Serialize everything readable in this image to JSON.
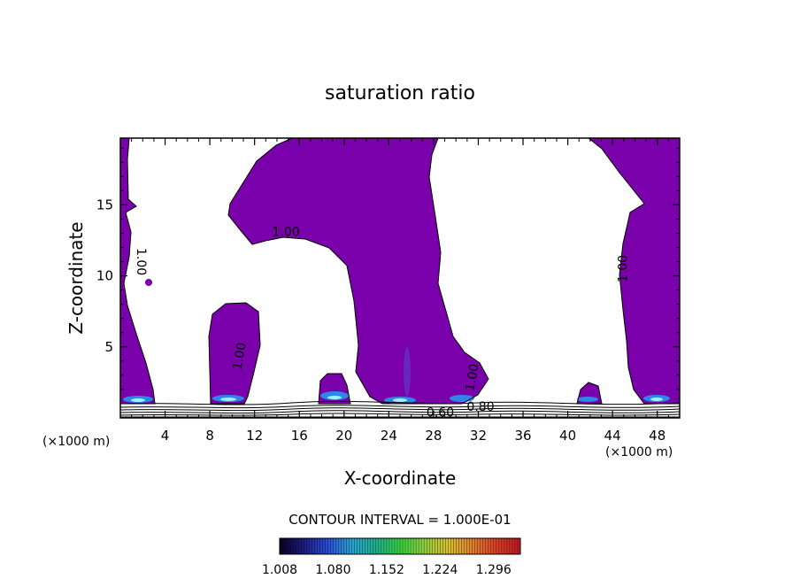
{
  "chart_data": {
    "type": "heatmap",
    "title": "saturation ratio",
    "xlabel": "X-coordinate",
    "ylabel": "Z-coordinate",
    "x_unit": "(×1000 m)",
    "x_unit_right": "(×1000 m)",
    "xlim": [
      0,
      50
    ],
    "ylim": [
      0,
      19.7
    ],
    "x_ticks": [
      4,
      8,
      12,
      16,
      20,
      24,
      28,
      32,
      36,
      40,
      44,
      48
    ],
    "y_ticks": [
      5,
      10,
      15
    ],
    "fill_color": "#7a00ab",
    "contour_interval_text": "CONTOUR INTERVAL = 1.000E-01",
    "contour_labels": [
      {
        "text": "1.00",
        "x": 1.5,
        "z": 11.0,
        "rotate": 90
      },
      {
        "text": "1.00",
        "x": 14.8,
        "z": 12.8,
        "rotate": 0
      },
      {
        "text": "1.00",
        "x": 11.0,
        "z": 4.3,
        "rotate": -80
      },
      {
        "text": "1.00",
        "x": 31.8,
        "z": 2.8,
        "rotate": -80
      },
      {
        "text": "1.00",
        "x": 45.3,
        "z": 10.5,
        "rotate": -90
      },
      {
        "text": "0.80",
        "x": 32.2,
        "z": 0.5,
        "rotate": 0
      },
      {
        "text": "0.60",
        "x": 28.6,
        "z": 0.1,
        "rotate": 0
      }
    ],
    "colorbar": {
      "min": 1.008,
      "max": 1.332,
      "tick_labels": [
        "1.008",
        "1.080",
        "1.152",
        "1.224",
        "1.296"
      ],
      "colors": [
        "#0a0020",
        "#1c1c80",
        "#2a4cd8",
        "#28a4d0",
        "#20b090",
        "#38d040",
        "#90d040",
        "#d8c030",
        "#e08030",
        "#d84028",
        "#c01820"
      ]
    }
  }
}
